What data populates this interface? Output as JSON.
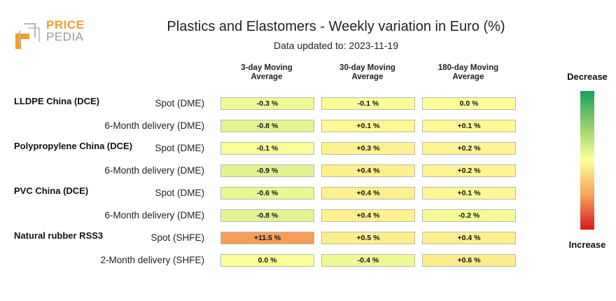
{
  "logo": {
    "line1": "PRICE",
    "line2": "PEDIA"
  },
  "chart_data": {
    "type": "table",
    "title": "Plastics and Elastomers - Weekly variation in Euro (%)",
    "subtitle": "Data updated to: 2023-11-19",
    "columns": [
      "3-day Moving Average",
      "30-day Moving Average",
      "180-day Moving Average"
    ],
    "groups": [
      {
        "name": "LLDPE China (DCE)",
        "rows": [
          {
            "label": "Spot (DME)",
            "values": [
              -0.3,
              -0.1,
              0.0
            ],
            "display": [
              "-0.3 %",
              "-0.1 %",
              "0.0 %"
            ]
          },
          {
            "label": "6-Month delivery (DME)",
            "values": [
              -0.8,
              0.1,
              0.1
            ],
            "display": [
              "-0.8 %",
              "+0.1 %",
              "+0.1 %"
            ]
          }
        ]
      },
      {
        "name": "Polypropylene China (DCE)",
        "rows": [
          {
            "label": "Spot (DME)",
            "values": [
              -0.1,
              0.3,
              0.2
            ],
            "display": [
              "-0.1 %",
              "+0.3 %",
              "+0.2 %"
            ]
          },
          {
            "label": "6-Month delivery (DME)",
            "values": [
              -0.9,
              0.4,
              0.2
            ],
            "display": [
              "-0.9 %",
              "+0.4 %",
              "+0.2 %"
            ]
          }
        ]
      },
      {
        "name": "PVC China (DCE)",
        "rows": [
          {
            "label": "Spot (DME)",
            "values": [
              -0.6,
              0.4,
              0.1
            ],
            "display": [
              "-0.6 %",
              "+0.4 %",
              "+0.1 %"
            ]
          },
          {
            "label": "6-Month delivery (DME)",
            "values": [
              -0.8,
              0.4,
              -0.2
            ],
            "display": [
              "-0.8 %",
              "+0.4 %",
              "-0.2 %"
            ]
          }
        ]
      },
      {
        "name": "Natural rubber RSS3",
        "rows": [
          {
            "label": "Spot (SHFE)",
            "values": [
              11.5,
              0.5,
              0.4
            ],
            "display": [
              "+11.5 %",
              "+0.5 %",
              "+0.4 %"
            ]
          },
          {
            "label": "2-Month delivery (SHFE)",
            "values": [
              0.0,
              -0.4,
              0.6
            ],
            "display": [
              "0.0 %",
              "-0.4 %",
              "+0.6 %"
            ]
          }
        ]
      }
    ],
    "legend": {
      "top": "Decrease",
      "bottom": "Increase"
    },
    "colors": {
      "neutral": "#ffff99",
      "decrease": "#1b9e5a",
      "increase": "#d7191c"
    }
  }
}
